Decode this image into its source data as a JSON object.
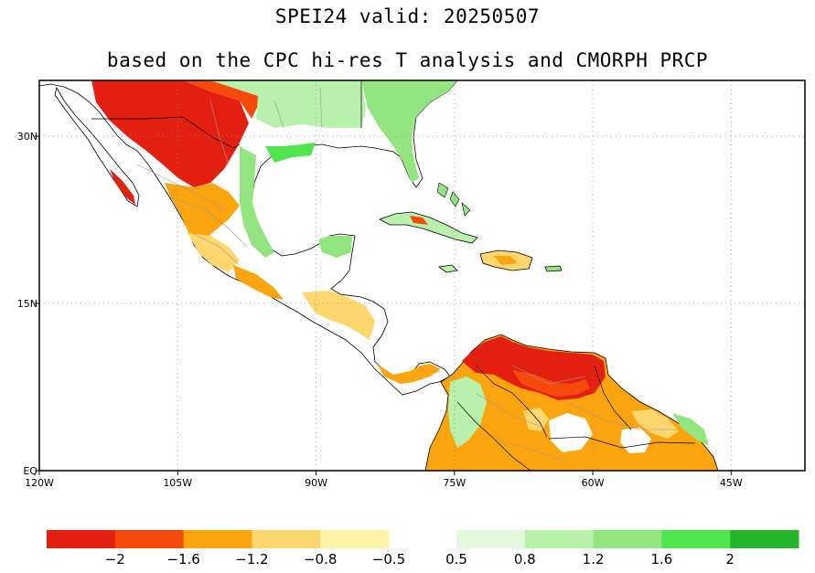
{
  "title": {
    "line1": "SPEI24  valid: 20250507",
    "line2": "based on the CPC hi-res T analysis and CMORPH PRCP"
  },
  "map": {
    "lon_range": [
      -120,
      -37
    ],
    "lat_range": [
      0,
      35
    ],
    "x_ticks": [
      {
        "label": "120W",
        "lon": -120
      },
      {
        "label": "105W",
        "lon": -105
      },
      {
        "label": "90W",
        "lon": -90
      },
      {
        "label": "75W",
        "lon": -75
      },
      {
        "label": "60W",
        "lon": -60
      },
      {
        "label": "45W",
        "lon": -45
      }
    ],
    "y_ticks": [
      {
        "label": "30N",
        "lat": 30
      },
      {
        "label": "15N",
        "lat": 15
      },
      {
        "label": "EQ",
        "lat": 0
      }
    ],
    "gridlines": true
  },
  "colorbar": {
    "dry_colors": [
      "#e3200f",
      "#f64a0c",
      "#fba40e",
      "#fdd66e",
      "#fef4a7"
    ],
    "wet_colors": [
      "#e3fbdc",
      "#b8f1ab",
      "#93e57f",
      "#50e44d",
      "#26b52a"
    ],
    "labels": [
      "−2",
      "−1.6",
      "−1.2",
      "−0.8",
      "−0.5",
      "0.5",
      "0.8",
      "1.2",
      "1.6",
      "2"
    ]
  }
}
